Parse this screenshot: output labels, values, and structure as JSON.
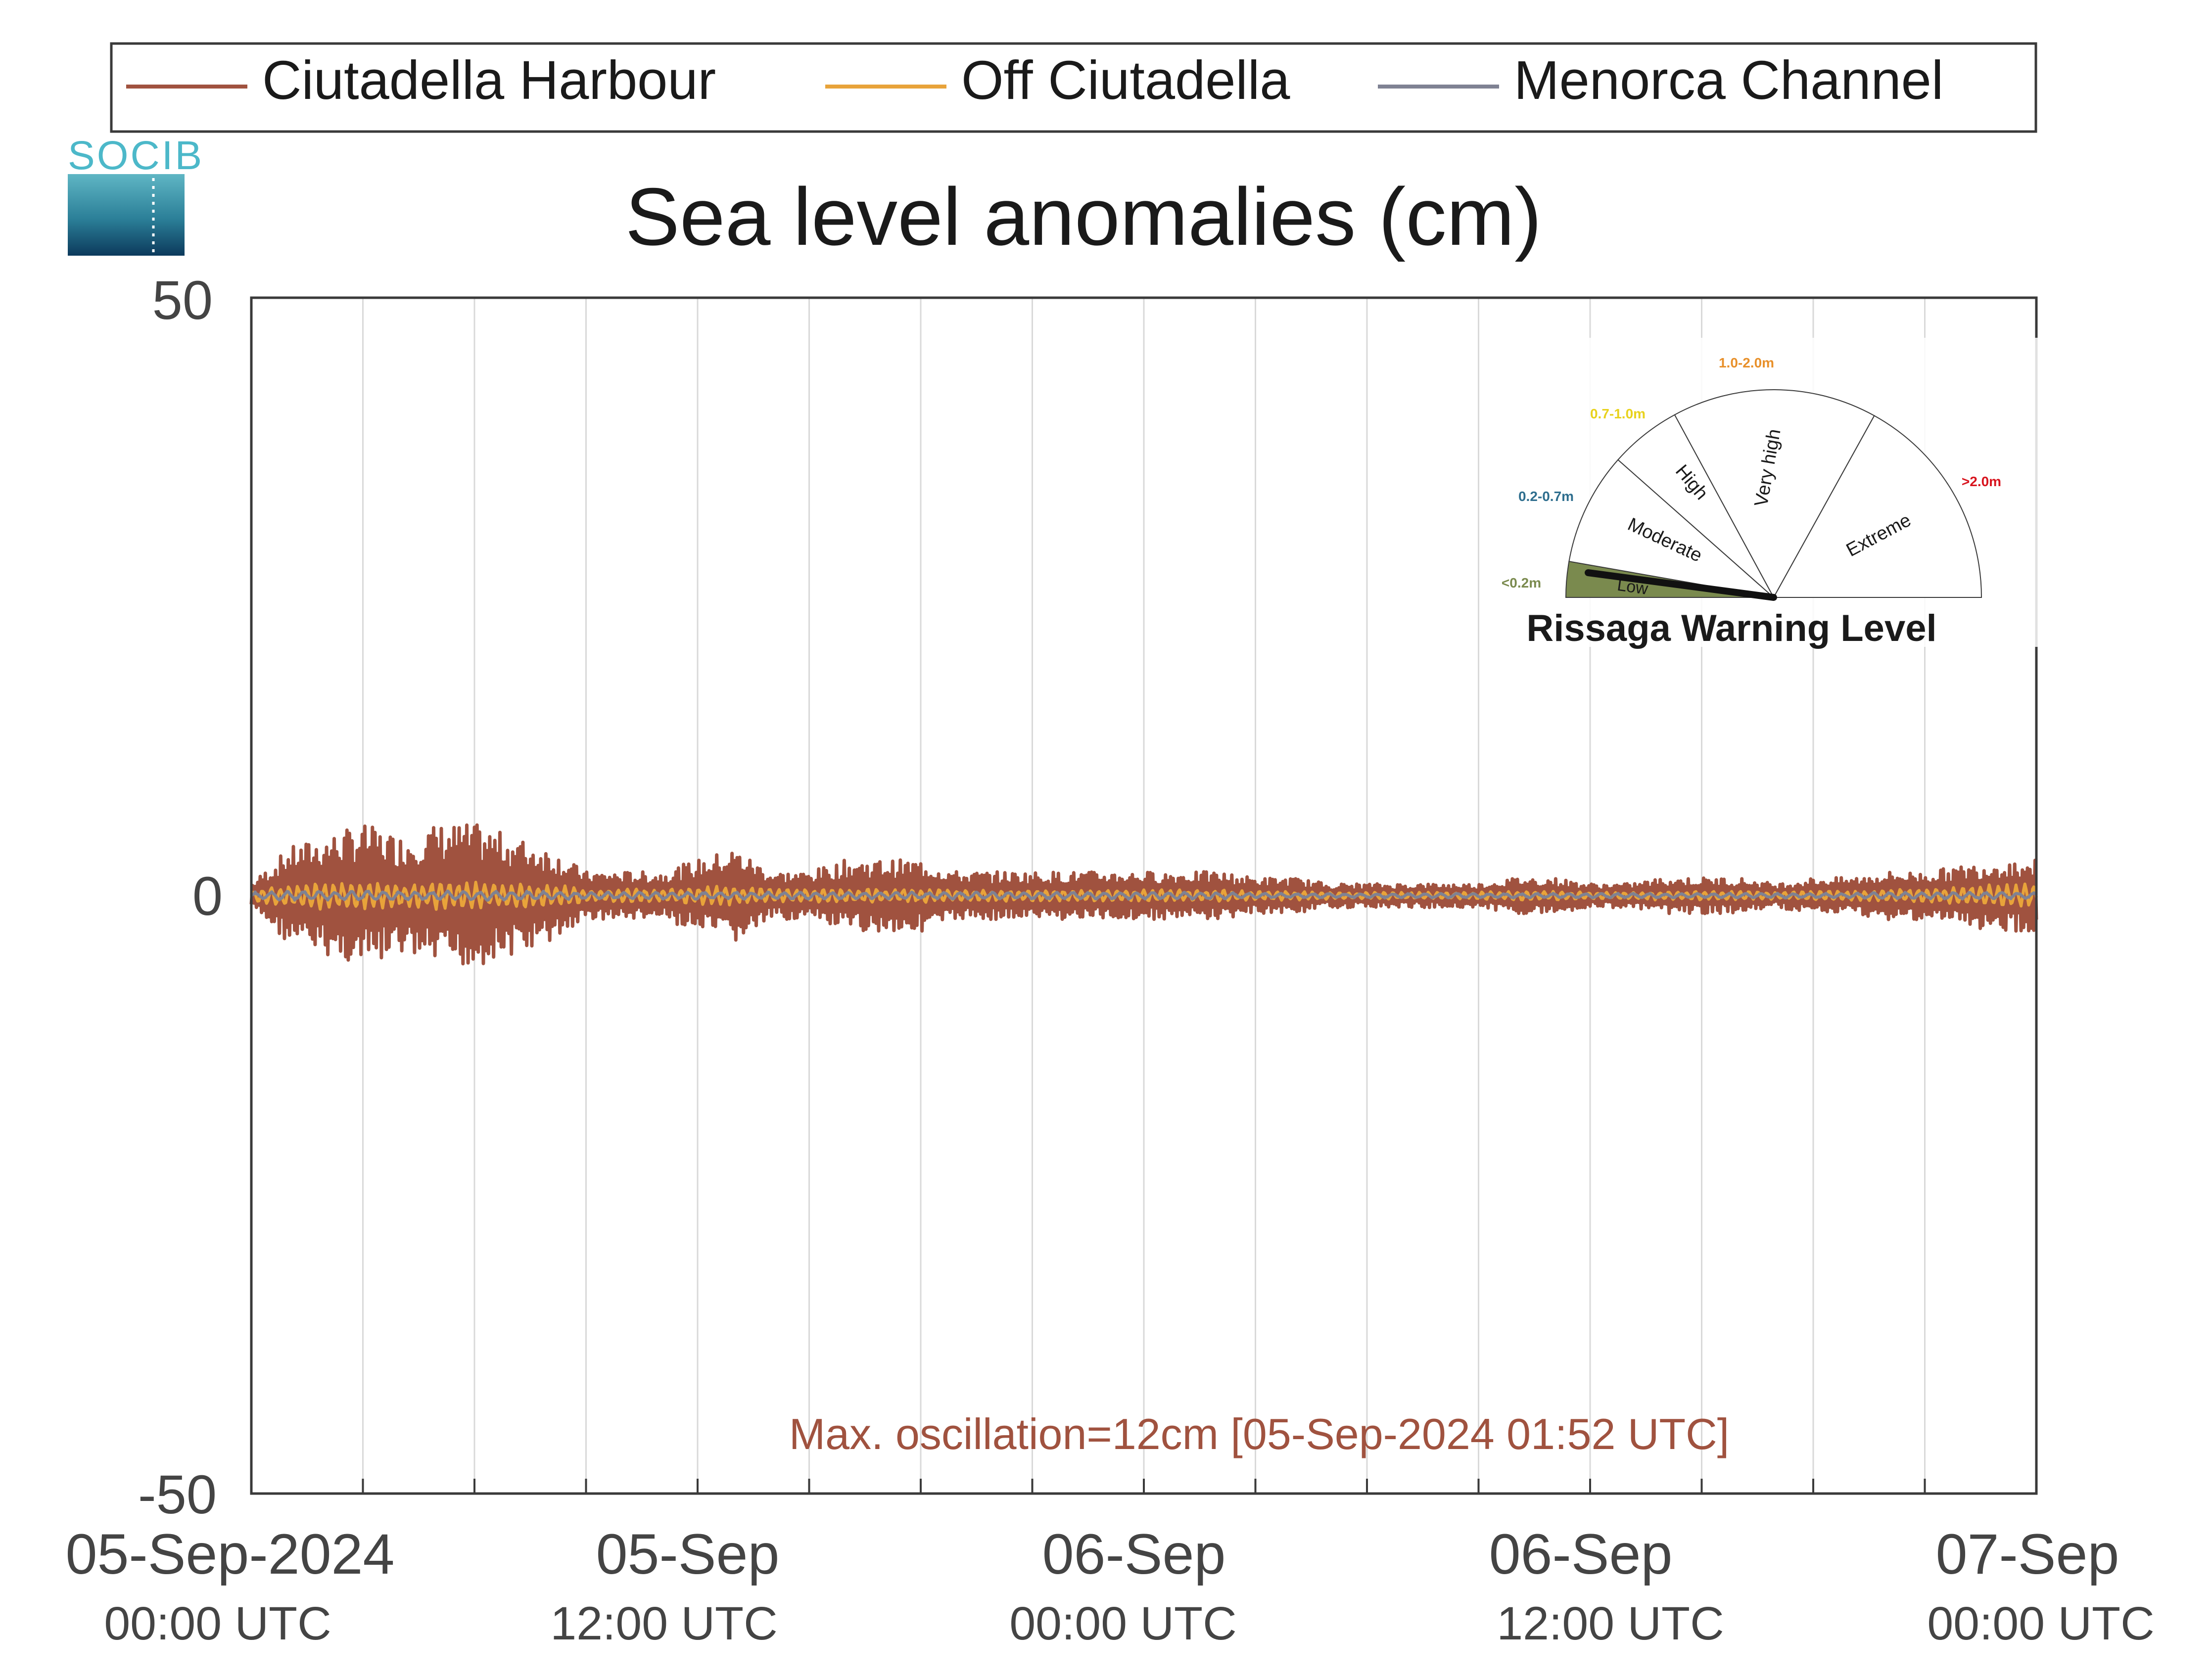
{
  "chart_data": {
    "type": "line",
    "title": "Sea level anomalies (cm)",
    "xlabel": "",
    "ylabel": "",
    "ylim": [
      -50,
      50
    ],
    "yticks": [
      -50,
      0,
      50
    ],
    "x_range_hours": [
      0,
      48
    ],
    "x_tick_labels": [
      {
        "date": "05-Sep-2024",
        "time": "00:00 UTC",
        "hour": 0
      },
      {
        "date": "05-Sep",
        "time": "12:00 UTC",
        "hour": 12
      },
      {
        "date": "06-Sep",
        "time": "00:00 UTC",
        "hour": 24
      },
      {
        "date": "06-Sep",
        "time": "12:00 UTC",
        "hour": 36
      },
      {
        "date": "07-Sep",
        "time": "00:00 UTC",
        "hour": 48
      }
    ],
    "grid_hours": [
      3,
      6,
      9,
      12,
      15,
      18,
      21,
      24,
      27,
      30,
      33,
      36,
      39,
      42,
      45
    ],
    "grid": true,
    "legend_position": "top",
    "series": [
      {
        "name": "Ciutadella Harbour",
        "color": "#a0523f",
        "envelope_hours": [
          0,
          1,
          2,
          3,
          4,
          5,
          6,
          7,
          8,
          9,
          10,
          11,
          12,
          13,
          14,
          15,
          16,
          17,
          18,
          19,
          20,
          21,
          22,
          23,
          24,
          25,
          26,
          27,
          28,
          29,
          30,
          31,
          32,
          33,
          34,
          35,
          36,
          37,
          38,
          39,
          40,
          41,
          42,
          43,
          44,
          45,
          46,
          47,
          48
        ],
        "envelope_amplitude_cm": [
          1,
          4,
          5,
          6,
          5,
          6,
          6,
          5,
          4,
          2,
          2,
          2,
          3,
          4,
          2,
          2,
          3,
          3,
          3,
          2,
          2,
          2,
          2,
          2,
          2,
          2,
          2,
          1.5,
          1.5,
          1,
          1,
          1,
          1,
          1,
          1.5,
          1.5,
          1,
          1,
          1.5,
          1.5,
          1.5,
          1,
          1.5,
          1.5,
          2,
          2,
          2.5,
          3,
          3
        ]
      },
      {
        "name": "Off Ciutadella",
        "color": "#e8a33a",
        "envelope_amplitude_cm": [
          0.5,
          1,
          1.2,
          1.2,
          1,
          1.2,
          1.2,
          1,
          1,
          0.6,
          0.6,
          0.6,
          0.8,
          0.8,
          0.6,
          0.6,
          0.6,
          0.6,
          0.6,
          0.5,
          0.5,
          0.5,
          0.5,
          0.5,
          0.5,
          0.5,
          0.5,
          0.4,
          0.4,
          0.3,
          0.3,
          0.3,
          0.3,
          0.3,
          0.4,
          0.4,
          0.3,
          0.3,
          0.4,
          0.4,
          0.4,
          0.3,
          0.4,
          0.4,
          0.5,
          0.6,
          0.8,
          1,
          1
        ]
      },
      {
        "name": "Menorca Channel",
        "color": "#7f8293",
        "envelope_amplitude_cm": [
          0.3,
          0.4,
          0.4,
          0.4,
          0.4,
          0.4,
          0.4,
          0.4,
          0.4,
          0.3,
          0.3,
          0.3,
          0.3,
          0.3,
          0.3,
          0.3,
          0.3,
          0.3,
          0.3,
          0.3,
          0.3,
          0.3,
          0.3,
          0.3,
          0.3,
          0.3,
          0.3,
          0.2,
          0.2,
          0.2,
          0.2,
          0.2,
          0.2,
          0.2,
          0.2,
          0.2,
          0.2,
          0.2,
          0.2,
          0.2,
          0.2,
          0.2,
          0.2,
          0.2,
          0.3,
          0.3,
          0.3,
          0.3,
          0.3
        ]
      }
    ],
    "annotation": "Max. oscillation=12cm [05-Sep-2024 01:52 UTC]",
    "annotation_color": "#a0523f",
    "warning_gauge": {
      "title": "Rissaga Warning Level",
      "current_level": "Low",
      "sectors": [
        {
          "name": "Low",
          "range": "<0.2m",
          "color": "#7a8a4e",
          "range_color": "#7a8a4e",
          "active": true
        },
        {
          "name": "Moderate",
          "range": "0.2-0.7m",
          "color": "#ffffff",
          "range_color": "#2e6e8e",
          "active": false
        },
        {
          "name": "High",
          "range": "0.7-1.0m",
          "color": "#ffffff",
          "range_color": "#e8d21d",
          "active": false
        },
        {
          "name": "Very high",
          "range": "1.0-2.0m",
          "color": "#ffffff",
          "range_color": "#e8902a",
          "active": false
        },
        {
          "name": "Extreme",
          "range": ">2.0m",
          "color": "#ffffff",
          "range_color": "#d8141e",
          "active": false
        }
      ]
    }
  },
  "logo": {
    "text": "SOCIB",
    "color": "#4cb8c9"
  }
}
